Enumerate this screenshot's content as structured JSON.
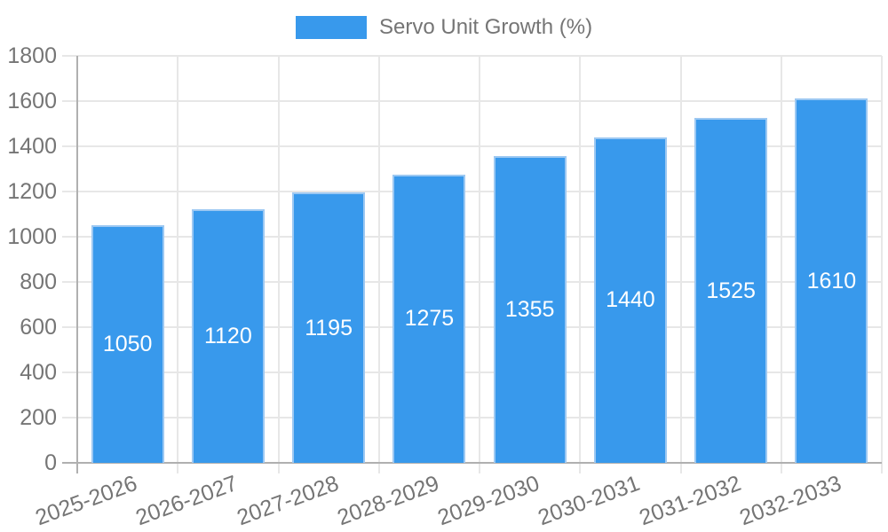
{
  "legend": {
    "label": "Servo Unit Growth (%)"
  },
  "chart_data": {
    "type": "bar",
    "title": "Servo Unit Growth (%)",
    "categories": [
      "2025-2026",
      "2026-2027",
      "2027-2028",
      "2028-2029",
      "2029-2030",
      "2030-2031",
      "2031-2032",
      "2032-2033"
    ],
    "values": [
      1050,
      1120,
      1195,
      1275,
      1355,
      1440,
      1525,
      1610
    ],
    "series_name": "Servo Unit Growth (%)",
    "xlabel": "",
    "ylabel": "",
    "ylim": [
      0,
      1800
    ],
    "ytick_step": 200,
    "yticks": [
      0,
      200,
      400,
      600,
      800,
      1000,
      1200,
      1400,
      1600,
      1800
    ],
    "grid": true,
    "legend_position": "top",
    "x_label_rotation_deg": -20,
    "value_labels_inside_bars": true,
    "colors": {
      "bar_fill": "#3899ec",
      "bar_border": "#9cc8f2",
      "value_label": "#ffffff",
      "grid_line": "#e7e7e7",
      "axis_line": "#b0b0b0",
      "tick_label": "#757575",
      "legend_text": "#757575",
      "background": "#ffffff"
    }
  }
}
